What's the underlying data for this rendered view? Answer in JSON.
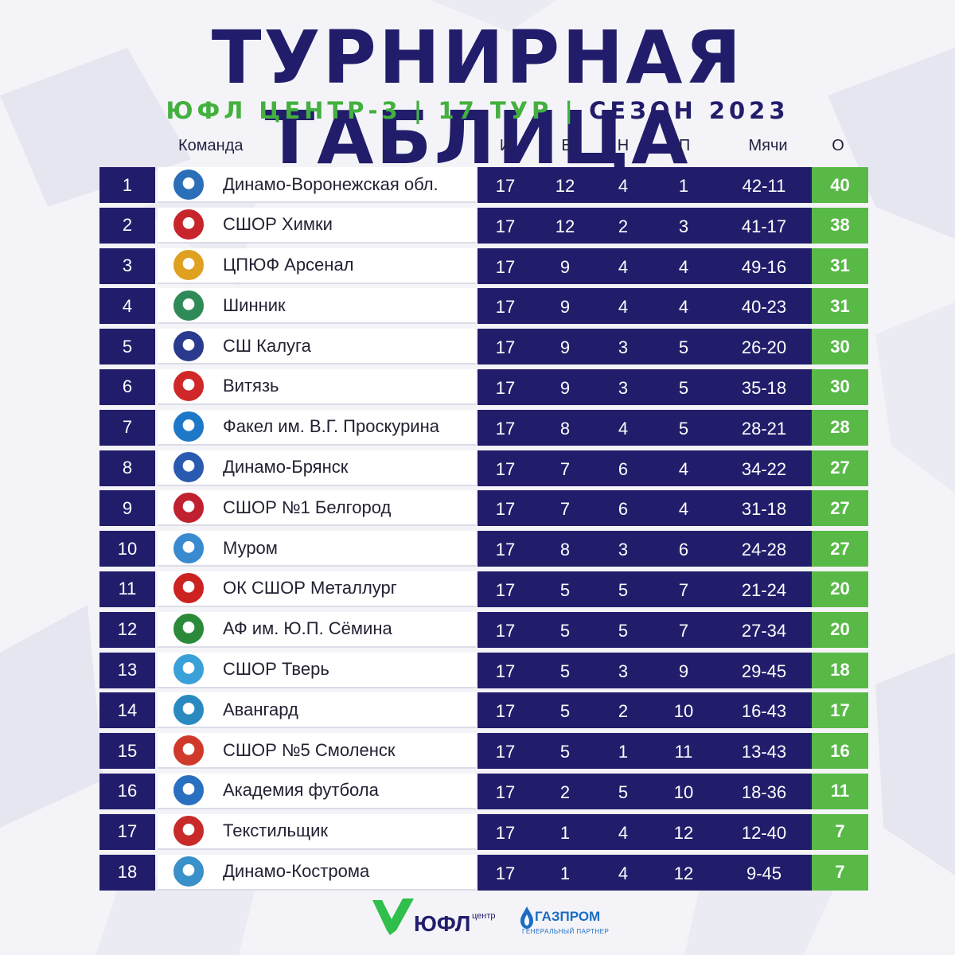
{
  "title": "ТУРНИРНАЯ ТАБЛИЦА",
  "subtitle": {
    "league": "ЮФЛ ЦЕНТР-3",
    "sep1": " | ",
    "round": "17 ТУР",
    "sep2": " | ",
    "season": "СЕЗОН 2023"
  },
  "headers": {
    "team": "Команда",
    "played": "И",
    "won": "В",
    "drawn": "Н",
    "lost": "П",
    "goals": "Мячи",
    "points": "О"
  },
  "rows": [
    {
      "pos": "1",
      "team": "Динамо-Воронежская обл.",
      "played": "17",
      "won": "12",
      "drawn": "4",
      "lost": "1",
      "goals": "42-11",
      "points": "40"
    },
    {
      "pos": "2",
      "team": "СШОР Химки",
      "played": "17",
      "won": "12",
      "drawn": "2",
      "lost": "3",
      "goals": "41-17",
      "points": "38"
    },
    {
      "pos": "3",
      "team": "ЦПЮФ Арсенал",
      "played": "17",
      "won": "9",
      "drawn": "4",
      "lost": "4",
      "goals": "49-16",
      "points": "31"
    },
    {
      "pos": "4",
      "team": "Шинник",
      "played": "17",
      "won": "9",
      "drawn": "4",
      "lost": "4",
      "goals": "40-23",
      "points": "31"
    },
    {
      "pos": "5",
      "team": "СШ Калуга",
      "played": "17",
      "won": "9",
      "drawn": "3",
      "lost": "5",
      "goals": "26-20",
      "points": "30"
    },
    {
      "pos": "6",
      "team": "Витязь",
      "played": "17",
      "won": "9",
      "drawn": "3",
      "lost": "5",
      "goals": "35-18",
      "points": "30"
    },
    {
      "pos": "7",
      "team": "Факел им. В.Г. Проскурина",
      "played": "17",
      "won": "8",
      "drawn": "4",
      "lost": "5",
      "goals": "28-21",
      "points": "28"
    },
    {
      "pos": "8",
      "team": "Динамо-Брянск",
      "played": "17",
      "won": "7",
      "drawn": "6",
      "lost": "4",
      "goals": "34-22",
      "points": "27"
    },
    {
      "pos": "9",
      "team": "СШОР №1 Белгород",
      "played": "17",
      "won": "7",
      "drawn": "6",
      "lost": "4",
      "goals": "31-18",
      "points": "27"
    },
    {
      "pos": "10",
      "team": "Муром",
      "played": "17",
      "won": "8",
      "drawn": "3",
      "lost": "6",
      "goals": "24-28",
      "points": "27"
    },
    {
      "pos": "11",
      "team": "ОК СШОР Металлург",
      "played": "17",
      "won": "5",
      "drawn": "5",
      "lost": "7",
      "goals": "21-24",
      "points": "20"
    },
    {
      "pos": "12",
      "team": "АФ им. Ю.П. Сёмина",
      "played": "17",
      "won": "5",
      "drawn": "5",
      "lost": "7",
      "goals": "27-34",
      "points": "20"
    },
    {
      "pos": "13",
      "team": "СШОР Тверь",
      "played": "17",
      "won": "5",
      "drawn": "3",
      "lost": "9",
      "goals": "29-45",
      "points": "18"
    },
    {
      "pos": "14",
      "team": "Авангард",
      "played": "17",
      "won": "5",
      "drawn": "2",
      "lost": "10",
      "goals": "16-43",
      "points": "17"
    },
    {
      "pos": "15",
      "team": "СШОР №5 Смоленск",
      "played": "17",
      "won": "5",
      "drawn": "1",
      "lost": "11",
      "goals": "13-43",
      "points": "16"
    },
    {
      "pos": "16",
      "team": "Академия футбола",
      "played": "17",
      "won": "2",
      "drawn": "5",
      "lost": "10",
      "goals": "18-36",
      "points": "11"
    },
    {
      "pos": "17",
      "team": "Текстильщик",
      "played": "17",
      "won": "1",
      "drawn": "4",
      "lost": "12",
      "goals": "12-40",
      "points": "7"
    },
    {
      "pos": "18",
      "team": "Динамо-Кострома",
      "played": "17",
      "won": "1",
      "drawn": "4",
      "lost": "12",
      "goals": "9-45",
      "points": "7"
    }
  ],
  "logo_colors": [
    "#2a6fb8",
    "#c8242c",
    "#e0a020",
    "#2e8b57",
    "#2a3a8c",
    "#d02828",
    "#1e78c8",
    "#2a5ab0",
    "#c02030",
    "#3a8ad0",
    "#cc2222",
    "#2a8a3a",
    "#3aa0d8",
    "#2a8ac0",
    "#d03a2a",
    "#2a70c0",
    "#c82a2a",
    "#3a90c8"
  ],
  "footer": {
    "yufl": "ЮФЛ",
    "yufl_sub": "центр",
    "sponsor": "ГАЗПРОМ",
    "sponsor_sub": "ГЕНЕРАЛЬНЫЙ ПАРТНЕР"
  },
  "colors": {
    "navy": "#221d6b",
    "green": "#58b947",
    "subtitle_green": "#43b03f"
  }
}
